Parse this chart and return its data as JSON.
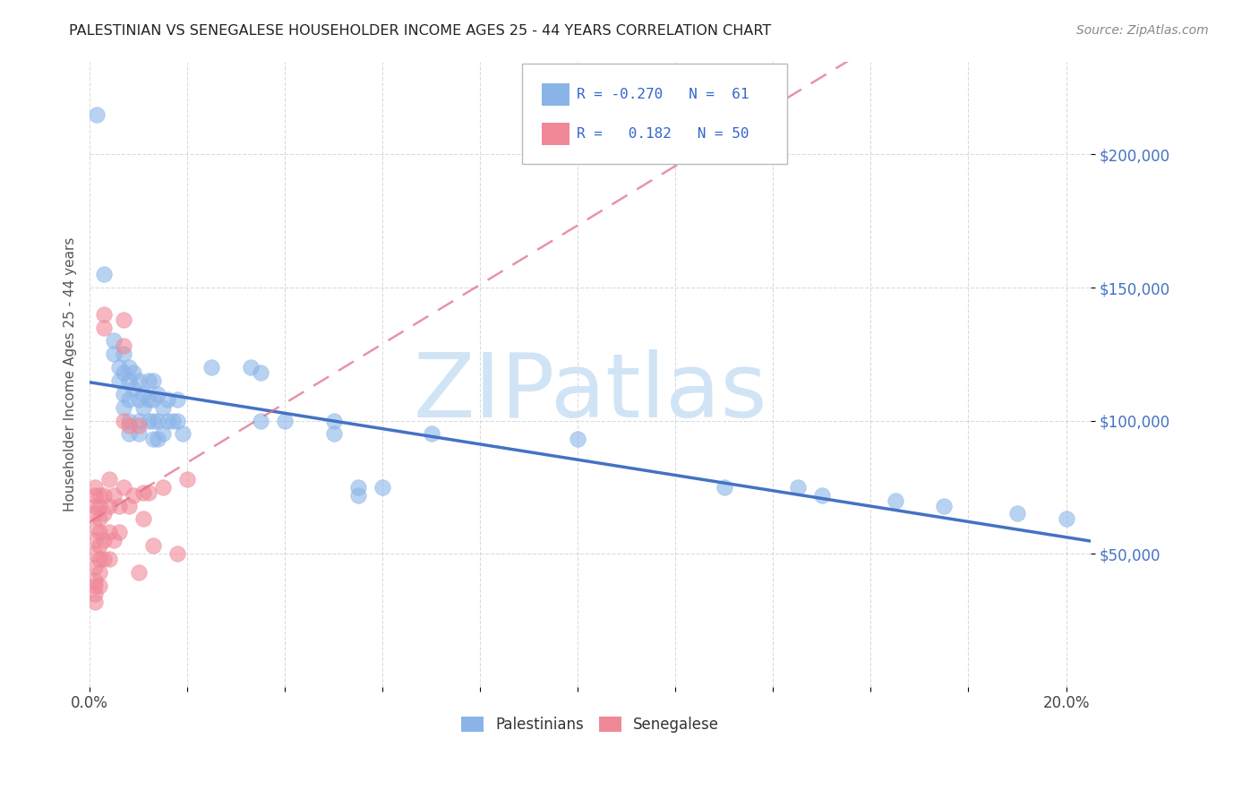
{
  "title": "PALESTINIAN VS SENEGALESE HOUSEHOLDER INCOME AGES 25 - 44 YEARS CORRELATION CHART",
  "source": "Source: ZipAtlas.com",
  "ylabel": "Householder Income Ages 25 - 44 years",
  "xlim": [
    0.0,
    0.205
  ],
  "ylim": [
    0,
    235000
  ],
  "ytick_positions": [
    50000,
    100000,
    150000,
    200000
  ],
  "ytick_labels": [
    "$50,000",
    "$100,000",
    "$150,000",
    "$200,000"
  ],
  "pal_scatter_color": "#8ab4e8",
  "sen_scatter_color": "#f08898",
  "trend_pal_color": "#4472c4",
  "trend_sen_color": "#e07088",
  "watermark_color": "#d0e4f5",
  "palestinians": [
    [
      0.0015,
      215000
    ],
    [
      0.003,
      155000
    ],
    [
      0.005,
      130000
    ],
    [
      0.005,
      125000
    ],
    [
      0.006,
      120000
    ],
    [
      0.006,
      115000
    ],
    [
      0.007,
      125000
    ],
    [
      0.007,
      118000
    ],
    [
      0.007,
      110000
    ],
    [
      0.007,
      105000
    ],
    [
      0.008,
      120000
    ],
    [
      0.008,
      115000
    ],
    [
      0.008,
      108000
    ],
    [
      0.008,
      100000
    ],
    [
      0.008,
      95000
    ],
    [
      0.009,
      118000
    ],
    [
      0.009,
      112000
    ],
    [
      0.01,
      115000
    ],
    [
      0.01,
      108000
    ],
    [
      0.01,
      100000
    ],
    [
      0.01,
      95000
    ],
    [
      0.011,
      110000
    ],
    [
      0.011,
      105000
    ],
    [
      0.012,
      115000
    ],
    [
      0.012,
      108000
    ],
    [
      0.012,
      100000
    ],
    [
      0.013,
      115000
    ],
    [
      0.013,
      108000
    ],
    [
      0.013,
      100000
    ],
    [
      0.013,
      93000
    ],
    [
      0.014,
      110000
    ],
    [
      0.014,
      100000
    ],
    [
      0.014,
      93000
    ],
    [
      0.015,
      105000
    ],
    [
      0.015,
      95000
    ],
    [
      0.016,
      108000
    ],
    [
      0.016,
      100000
    ],
    [
      0.017,
      100000
    ],
    [
      0.018,
      108000
    ],
    [
      0.018,
      100000
    ],
    [
      0.019,
      95000
    ],
    [
      0.025,
      120000
    ],
    [
      0.033,
      120000
    ],
    [
      0.035,
      118000
    ],
    [
      0.035,
      100000
    ],
    [
      0.04,
      100000
    ],
    [
      0.05,
      100000
    ],
    [
      0.05,
      95000
    ],
    [
      0.055,
      75000
    ],
    [
      0.055,
      72000
    ],
    [
      0.06,
      75000
    ],
    [
      0.07,
      95000
    ],
    [
      0.1,
      93000
    ],
    [
      0.13,
      75000
    ],
    [
      0.145,
      75000
    ],
    [
      0.15,
      72000
    ],
    [
      0.165,
      70000
    ],
    [
      0.175,
      68000
    ],
    [
      0.19,
      65000
    ],
    [
      0.2,
      63000
    ]
  ],
  "senegalese": [
    [
      0.001,
      75000
    ],
    [
      0.001,
      72000
    ],
    [
      0.001,
      68000
    ],
    [
      0.001,
      65000
    ],
    [
      0.001,
      60000
    ],
    [
      0.001,
      55000
    ],
    [
      0.001,
      50000
    ],
    [
      0.001,
      45000
    ],
    [
      0.001,
      40000
    ],
    [
      0.001,
      38000
    ],
    [
      0.001,
      35000
    ],
    [
      0.001,
      32000
    ],
    [
      0.002,
      72000
    ],
    [
      0.002,
      68000
    ],
    [
      0.002,
      63000
    ],
    [
      0.002,
      58000
    ],
    [
      0.002,
      53000
    ],
    [
      0.002,
      48000
    ],
    [
      0.002,
      43000
    ],
    [
      0.002,
      38000
    ],
    [
      0.003,
      140000
    ],
    [
      0.003,
      135000
    ],
    [
      0.003,
      72000
    ],
    [
      0.003,
      65000
    ],
    [
      0.003,
      55000
    ],
    [
      0.003,
      48000
    ],
    [
      0.004,
      78000
    ],
    [
      0.004,
      68000
    ],
    [
      0.004,
      58000
    ],
    [
      0.004,
      48000
    ],
    [
      0.005,
      72000
    ],
    [
      0.005,
      55000
    ],
    [
      0.006,
      68000
    ],
    [
      0.006,
      58000
    ],
    [
      0.007,
      138000
    ],
    [
      0.007,
      128000
    ],
    [
      0.007,
      100000
    ],
    [
      0.007,
      75000
    ],
    [
      0.008,
      98000
    ],
    [
      0.008,
      68000
    ],
    [
      0.009,
      72000
    ],
    [
      0.01,
      98000
    ],
    [
      0.01,
      43000
    ],
    [
      0.011,
      73000
    ],
    [
      0.011,
      63000
    ],
    [
      0.012,
      73000
    ],
    [
      0.013,
      53000
    ],
    [
      0.015,
      75000
    ],
    [
      0.018,
      50000
    ],
    [
      0.02,
      78000
    ]
  ]
}
